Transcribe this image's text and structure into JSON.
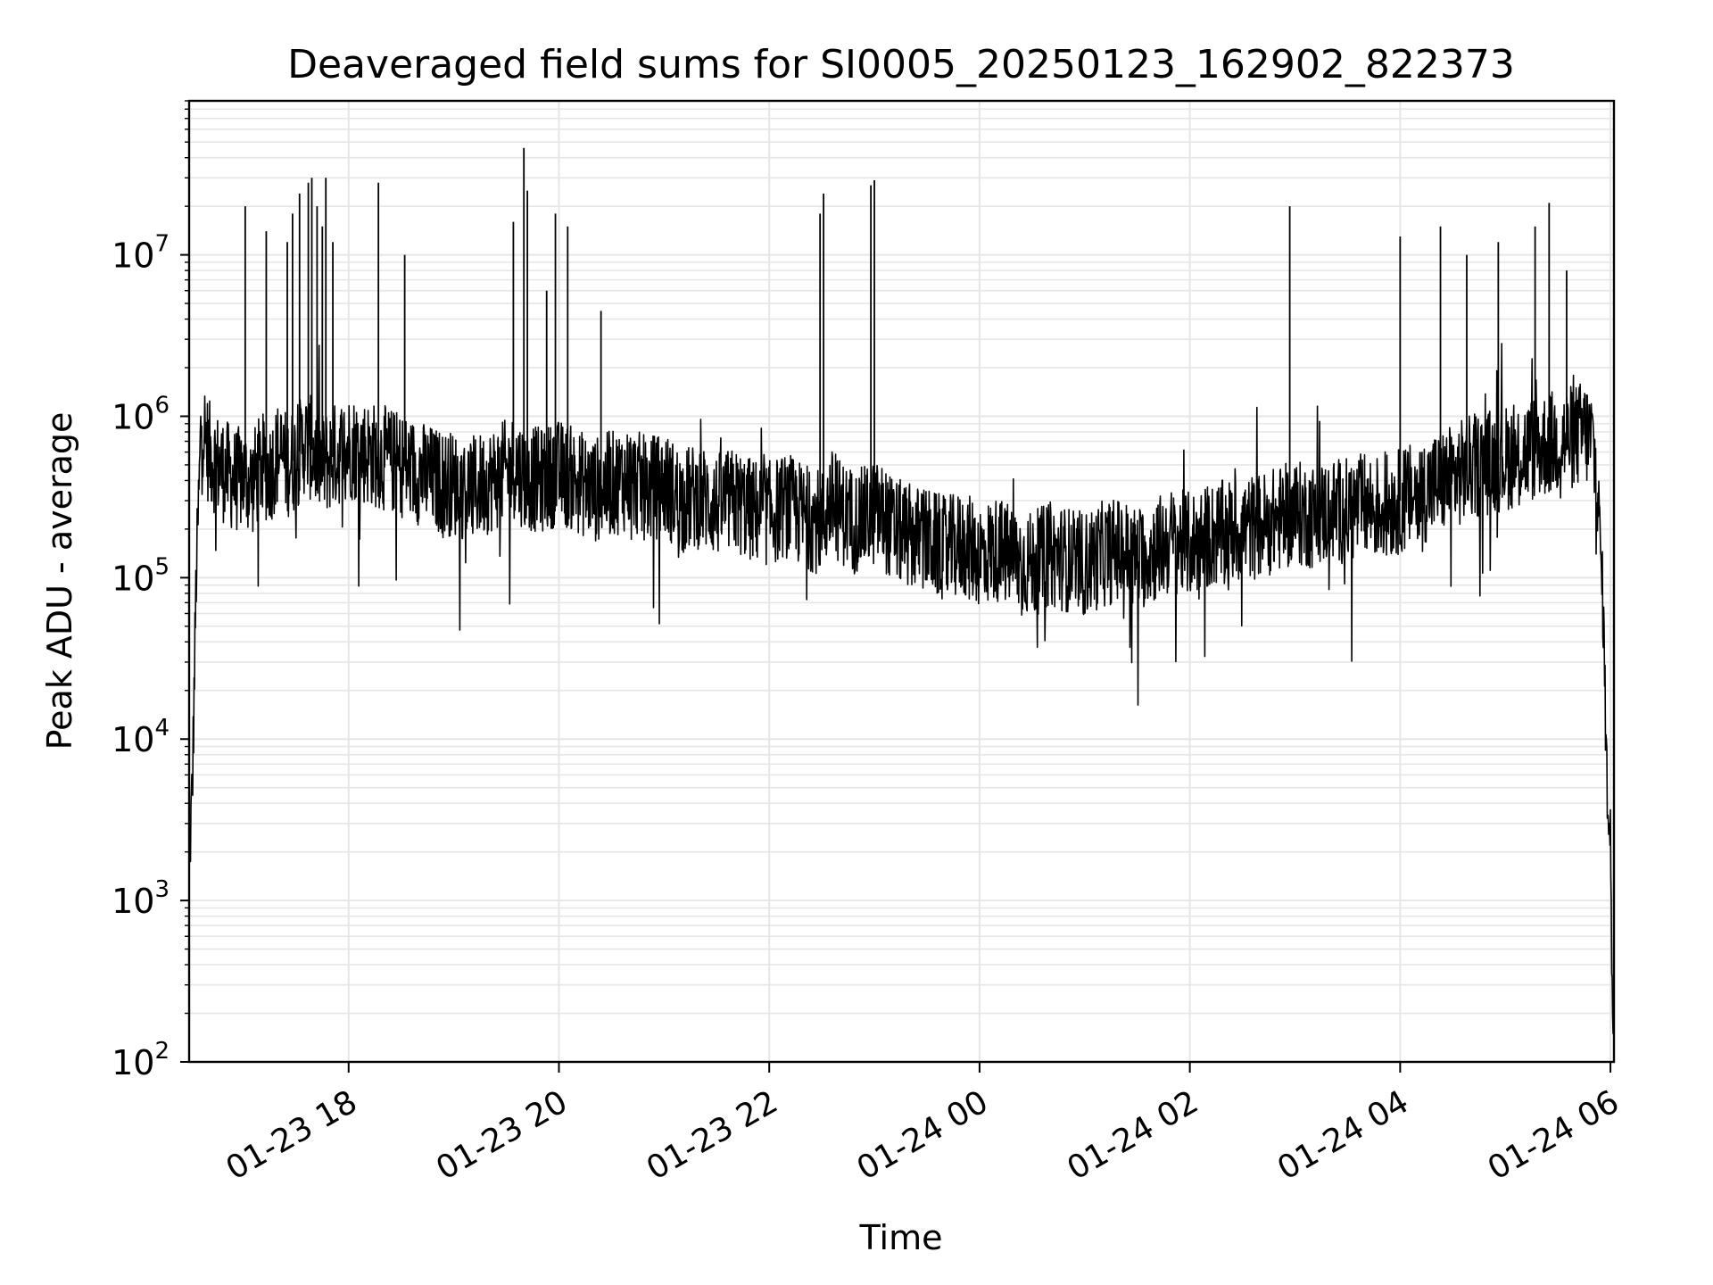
{
  "chart_data": {
    "type": "line",
    "title": "Deaveraged field sums for SI0005_20250123_162902_822373",
    "xlabel": "Time",
    "ylabel": "Peak ADU - average",
    "yscale": "log",
    "ylim": [
      100,
      90000000
    ],
    "xlim": [
      "2025-01-23T16:29",
      "2025-01-24T06:02"
    ],
    "grid": true,
    "line_color": "#000000",
    "grid_color": "#e6e6e6",
    "x_ticks": [
      {
        "value": "2025-01-23T18:00",
        "label": "01-23 18"
      },
      {
        "value": "2025-01-23T20:00",
        "label": "01-23 20"
      },
      {
        "value": "2025-01-23T22:00",
        "label": "01-23 22"
      },
      {
        "value": "2025-01-24T00:00",
        "label": "01-24 00"
      },
      {
        "value": "2025-01-24T02:00",
        "label": "01-24 02"
      },
      {
        "value": "2025-01-24T04:00",
        "label": "01-24 04"
      },
      {
        "value": "2025-01-24T06:00",
        "label": "01-24 06"
      }
    ],
    "y_ticks": [
      {
        "value": 100,
        "base": "10",
        "exp": "2"
      },
      {
        "value": 1000,
        "base": "10",
        "exp": "3"
      },
      {
        "value": 10000,
        "base": "10",
        "exp": "4"
      },
      {
        "value": 100000,
        "base": "10",
        "exp": "5"
      },
      {
        "value": 1000000,
        "base": "10",
        "exp": "6"
      },
      {
        "value": 10000000,
        "base": "10",
        "exp": "7"
      }
    ],
    "series": [
      {
        "x": [
          "2025-01-23T16:29",
          "2025-01-23T16:31",
          "2025-01-23T16:33",
          "2025-01-23T16:36",
          "2025-01-23T16:40",
          "2025-01-23T16:45",
          "2025-01-23T16:50",
          "2025-01-23T16:55",
          "2025-01-23T17:00",
          "2025-01-23T17:05",
          "2025-01-23T17:10",
          "2025-01-23T17:15",
          "2025-01-23T17:20",
          "2025-01-23T17:25",
          "2025-01-23T17:30",
          "2025-01-23T17:35",
          "2025-01-23T17:40",
          "2025-01-23T17:45",
          "2025-01-23T17:50",
          "2025-01-23T17:55",
          "2025-01-23T18:00",
          "2025-01-23T18:10",
          "2025-01-23T18:20",
          "2025-01-23T18:30",
          "2025-01-23T18:40",
          "2025-01-23T18:50",
          "2025-01-23T19:00",
          "2025-01-23T19:10",
          "2025-01-23T19:20",
          "2025-01-23T19:30",
          "2025-01-23T19:35",
          "2025-01-23T19:40",
          "2025-01-23T19:50",
          "2025-01-23T20:00",
          "2025-01-23T20:10",
          "2025-01-23T20:20",
          "2025-01-23T20:30",
          "2025-01-23T20:40",
          "2025-01-23T20:50",
          "2025-01-23T21:00",
          "2025-01-23T21:10",
          "2025-01-23T21:20",
          "2025-01-23T21:30",
          "2025-01-23T21:40",
          "2025-01-23T21:50",
          "2025-01-23T22:00",
          "2025-01-23T22:10",
          "2025-01-23T22:20",
          "2025-01-23T22:30",
          "2025-01-23T22:35",
          "2025-01-23T22:40",
          "2025-01-23T22:50",
          "2025-01-23T23:00",
          "2025-01-23T23:05",
          "2025-01-23T23:10",
          "2025-01-23T23:20",
          "2025-01-23T23:30",
          "2025-01-23T23:40",
          "2025-01-23T23:50",
          "2025-01-24T00:00",
          "2025-01-24T00:10",
          "2025-01-24T00:20",
          "2025-01-24T00:30",
          "2025-01-24T00:40",
          "2025-01-24T00:50",
          "2025-01-24T01:00",
          "2025-01-24T01:10",
          "2025-01-24T01:20",
          "2025-01-24T01:30",
          "2025-01-24T01:40",
          "2025-01-24T01:50",
          "2025-01-24T02:00",
          "2025-01-24T02:10",
          "2025-01-24T02:20",
          "2025-01-24T02:30",
          "2025-01-24T02:40",
          "2025-01-24T02:50",
          "2025-01-24T03:00",
          "2025-01-24T03:10",
          "2025-01-24T03:20",
          "2025-01-24T03:30",
          "2025-01-24T03:40",
          "2025-01-24T03:50",
          "2025-01-24T04:00",
          "2025-01-24T04:10",
          "2025-01-24T04:20",
          "2025-01-24T04:30",
          "2025-01-24T04:40",
          "2025-01-24T04:50",
          "2025-01-24T05:00",
          "2025-01-24T05:10",
          "2025-01-24T05:20",
          "2025-01-24T05:30",
          "2025-01-24T05:40",
          "2025-01-24T05:45",
          "2025-01-24T05:50",
          "2025-01-24T05:53",
          "2025-01-24T05:56",
          "2025-01-24T05:58",
          "2025-01-24T06:00",
          "2025-01-24T06:01"
        ],
        "y": [
          1500,
          6000,
          100000,
          1000000,
          600000,
          500000,
          450000,
          400000,
          420000,
          380000,
          500000,
          450000,
          600000,
          500000,
          550000,
          700000,
          600000,
          500000,
          550000,
          600000,
          650000,
          600000,
          550000,
          500000,
          450000,
          400000,
          380000,
          350000,
          400000,
          450000,
          500000,
          420000,
          400000,
          450000,
          400000,
          350000,
          380000,
          420000,
          350000,
          380000,
          300000,
          320000,
          280000,
          300000,
          260000,
          250000,
          280000,
          240000,
          220000,
          300000,
          260000,
          220000,
          250000,
          240000,
          200000,
          180000,
          170000,
          150000,
          160000,
          140000,
          150000,
          130000,
          120000,
          140000,
          130000,
          120000,
          140000,
          150000,
          130000,
          150000,
          170000,
          160000,
          180000,
          190000,
          200000,
          210000,
          230000,
          250000,
          240000,
          260000,
          260000,
          280000,
          270000,
          300000,
          330000,
          380000,
          420000,
          480000,
          520000,
          550000,
          600000,
          650000,
          700000,
          750000,
          800000,
          700000,
          300000,
          60000,
          5000,
          3000,
          200
        ]
      },
      {
        "spikes": [
          [
            "2025-01-23T17:01",
            20000000
          ],
          [
            "2025-01-23T17:13",
            14000000
          ],
          [
            "2025-01-23T17:25",
            12000000
          ],
          [
            "2025-01-23T17:28",
            18000000
          ],
          [
            "2025-01-23T17:32",
            24000000
          ],
          [
            "2025-01-23T17:37",
            28000000
          ],
          [
            "2025-01-23T17:39",
            30000000
          ],
          [
            "2025-01-23T17:42",
            20000000
          ],
          [
            "2025-01-23T17:45",
            15000000
          ],
          [
            "2025-01-23T17:47",
            30000000
          ],
          [
            "2025-01-23T17:51",
            12000000
          ],
          [
            "2025-01-23T18:17",
            28000000
          ],
          [
            "2025-01-23T18:32",
            10000000
          ],
          [
            "2025-01-23T19:34",
            16000000
          ],
          [
            "2025-01-23T19:40",
            46000000
          ],
          [
            "2025-01-23T19:42",
            25000000
          ],
          [
            "2025-01-23T19:53",
            6000000
          ],
          [
            "2025-01-23T19:58",
            18000000
          ],
          [
            "2025-01-23T20:05",
            15000000
          ],
          [
            "2025-01-23T20:24",
            4500000
          ],
          [
            "2025-01-23T22:29",
            18000000
          ],
          [
            "2025-01-23T22:31",
            24000000
          ],
          [
            "2025-01-23T22:58",
            27000000
          ],
          [
            "2025-01-23T23:00",
            29000000
          ],
          [
            "2025-01-24T02:57",
            20000000
          ],
          [
            "2025-01-24T04:00",
            13000000
          ],
          [
            "2025-01-24T04:23",
            15000000
          ],
          [
            "2025-01-24T04:38",
            10000000
          ],
          [
            "2025-01-24T04:56",
            12000000
          ],
          [
            "2025-01-24T05:17",
            15000000
          ],
          [
            "2025-01-24T05:25",
            21000000
          ],
          [
            "2025-01-24T05:35",
            8000000
          ]
        ]
      }
    ]
  }
}
